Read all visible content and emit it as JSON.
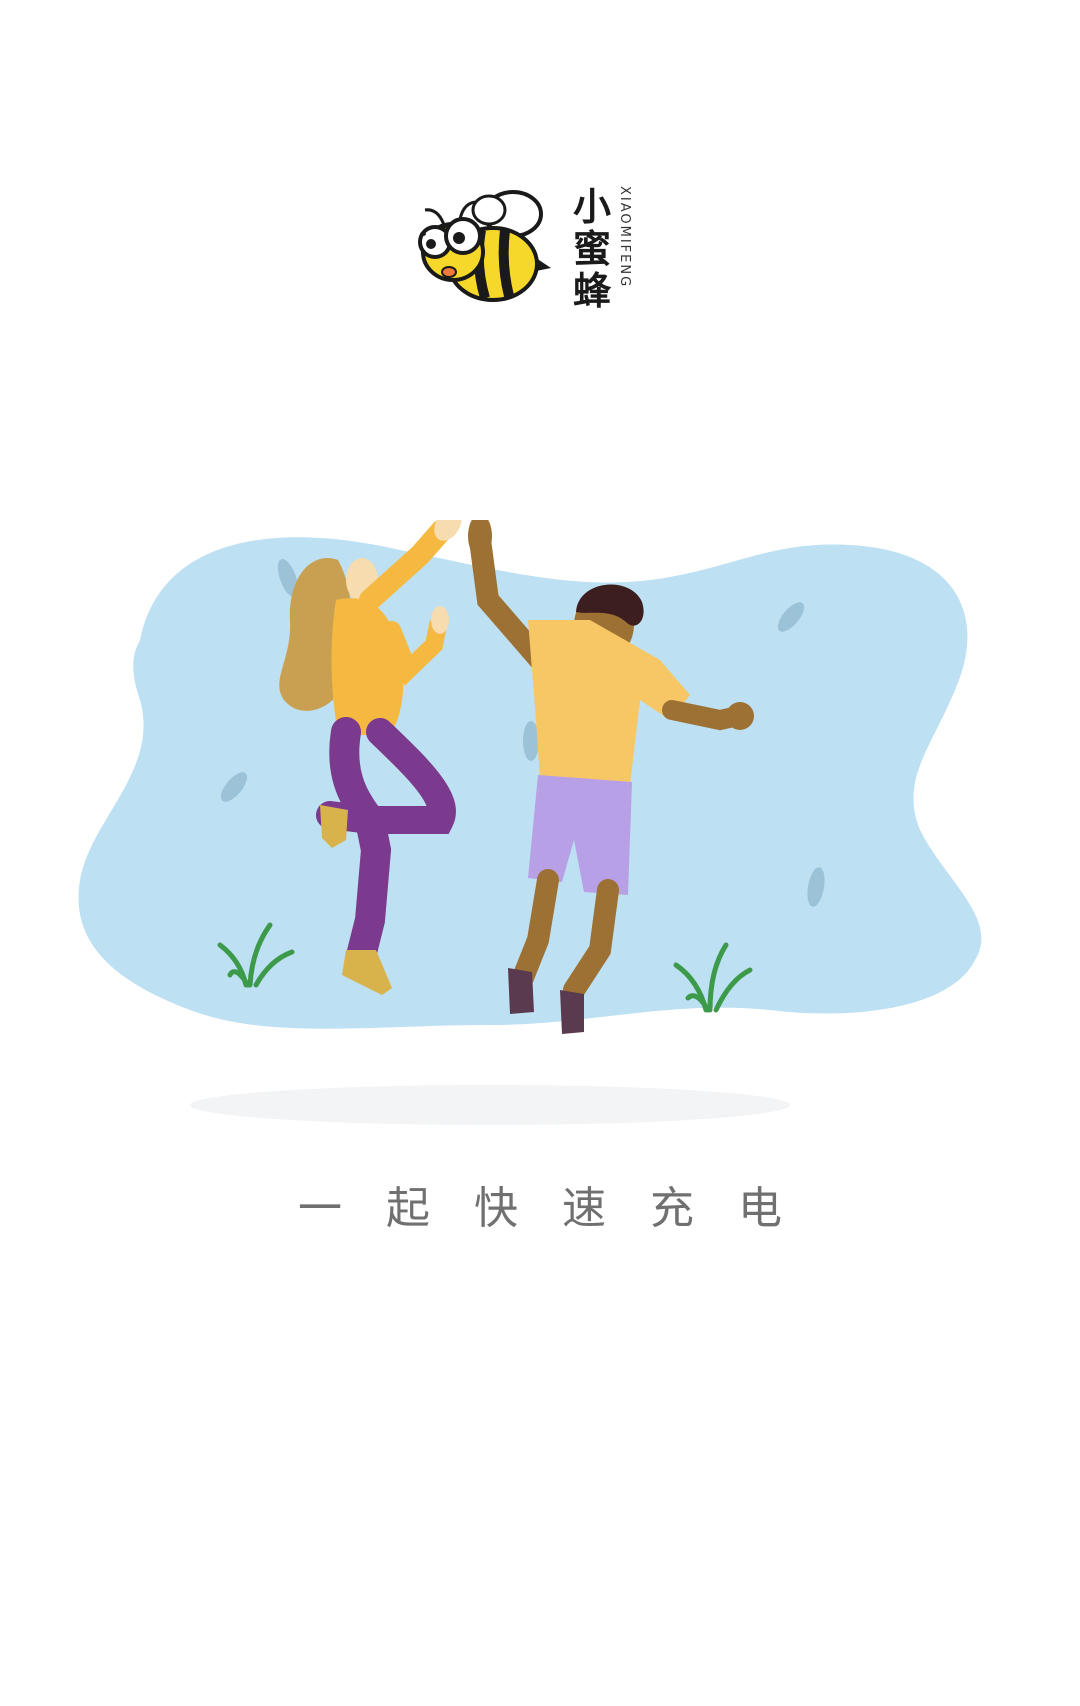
{
  "logo": {
    "name_cn": [
      "小",
      "蜜",
      "蜂"
    ],
    "name_en": "XIAOMIFENG",
    "mascot_icon": "bee-mascot-icon"
  },
  "illustration": {
    "icon": "friends-high-five-illustration"
  },
  "slogan": "一起快速充电",
  "colors": {
    "background": "#ffffff",
    "blob": "#bde0f2",
    "shirt": "#f5b942",
    "slogan_text": "#707070"
  }
}
